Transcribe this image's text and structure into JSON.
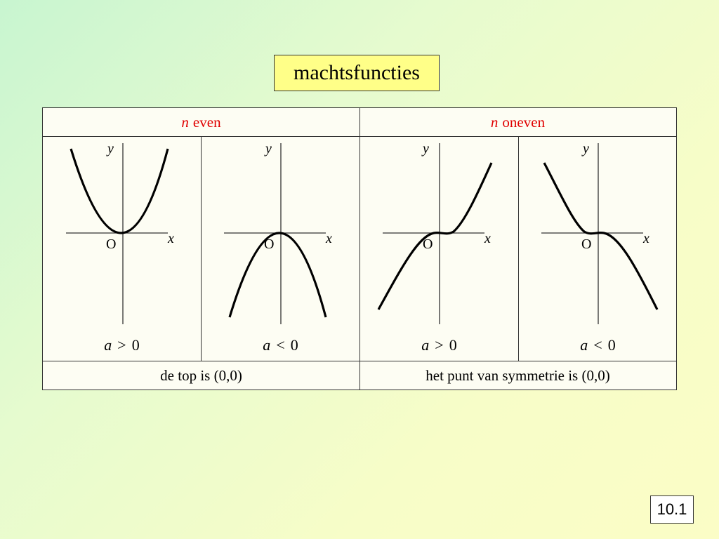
{
  "title": "machtsfuncties",
  "columns": [
    {
      "var": "n",
      "label": "even",
      "footer": "de top is (0,0)"
    },
    {
      "var": "n",
      "label": "oneven",
      "footer": "het punt van symmetrie is (0,0)"
    }
  ],
  "graphs": [
    {
      "y_label": "y",
      "x_label": "x",
      "origin_label": "O",
      "cond_var": "a",
      "cond_op": ">",
      "cond_val": "0"
    },
    {
      "y_label": "y",
      "x_label": "x",
      "origin_label": "O",
      "cond_var": "a",
      "cond_op": "<",
      "cond_val": "0"
    },
    {
      "y_label": "y",
      "x_label": "x",
      "origin_label": "O",
      "cond_var": "a",
      "cond_op": ">",
      "cond_val": "0"
    },
    {
      "y_label": "y",
      "x_label": "x",
      "origin_label": "O",
      "cond_var": "a",
      "cond_op": "<",
      "cond_val": "0"
    }
  ],
  "page_number": "10.1"
}
